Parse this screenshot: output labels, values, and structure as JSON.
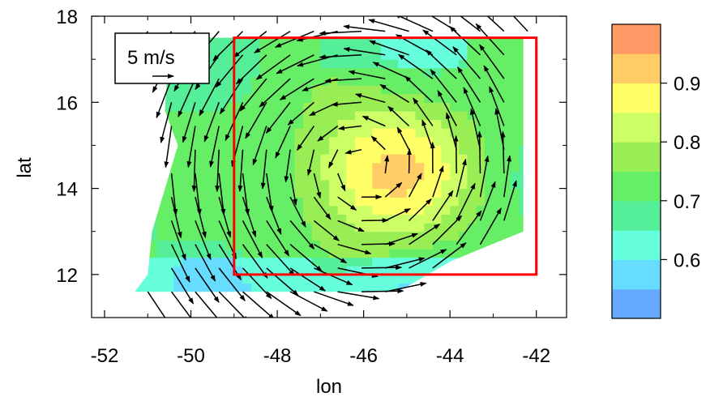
{
  "chart_data": {
    "type": "heatmap",
    "xlabel": "lon",
    "ylabel": "lat",
    "xlim": [
      -52.3,
      -41.3
    ],
    "ylim": [
      11.0,
      18.0
    ],
    "xticks": [
      -52,
      -50,
      -48,
      -46,
      -44,
      -42
    ],
    "yticks": [
      12,
      14,
      16,
      18
    ],
    "xtick_labels": [
      "-52",
      "-50",
      "-48",
      "-46",
      "-44",
      "-42"
    ],
    "ytick_labels": [
      "12",
      "14",
      "16",
      "18"
    ],
    "grid": false,
    "colorbar": {
      "levels": [
        0.55,
        0.6,
        0.65,
        0.7,
        0.75,
        0.8,
        0.85,
        0.9,
        0.95
      ],
      "colors": [
        "#66aaff",
        "#66ddff",
        "#66ffdd",
        "#55ee99",
        "#66ee66",
        "#99ee55",
        "#ccff66",
        "#ffff66",
        "#ffcc66",
        "#ff9966"
      ],
      "tick_values": [
        0.6,
        0.7,
        0.8,
        0.9
      ],
      "tick_labels": [
        "0.6",
        "0.7",
        "0.8",
        "0.9"
      ]
    },
    "field": {
      "center": [
        -45.5,
        14.4
      ],
      "peak": 0.93
    },
    "box": {
      "lon": [
        -49.0,
        -42.0
      ],
      "lat": [
        12.0,
        17.5
      ],
      "color": "#ff0000"
    },
    "vector_legend": {
      "label": "5 m/s",
      "speed": 5
    },
    "wind_center": [
      -46.0,
      14.5
    ]
  }
}
